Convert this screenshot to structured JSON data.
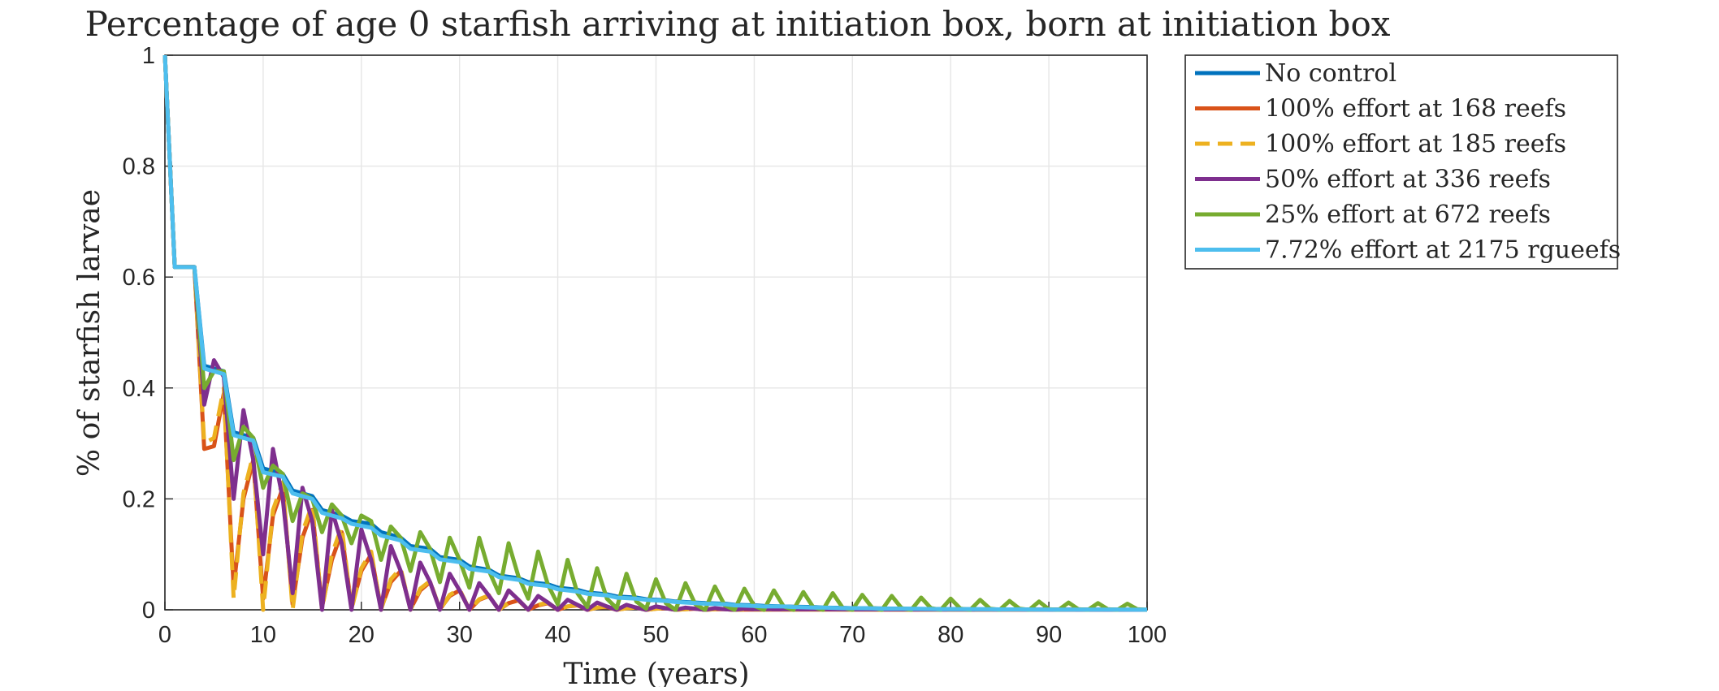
{
  "chart_data": {
    "type": "line",
    "title": "Percentage of age 0 starfish arriving at initiation box, born at initiation box",
    "xlabel": "Time (years)",
    "ylabel": "% of starfish larvae",
    "xlim": [
      0,
      100
    ],
    "ylim": [
      0,
      1
    ],
    "xticks": [
      "0",
      "10",
      "20",
      "30",
      "40",
      "50",
      "60",
      "70",
      "80",
      "90",
      "100"
    ],
    "yticks": [
      "0",
      "0.2",
      "0.4",
      "0.6",
      "0.8",
      "1"
    ],
    "grid": true,
    "legend_position": "outside-right-top",
    "series": [
      {
        "name": "No control",
        "color": "#0072BD",
        "dashed": false,
        "x": [
          0,
          1,
          3,
          4,
          6,
          7,
          9,
          10,
          12,
          13,
          15,
          16,
          18,
          19,
          21,
          22,
          24,
          25,
          27,
          28,
          30,
          31,
          33,
          34,
          36,
          37,
          39,
          40,
          42,
          43,
          45,
          46,
          48,
          49,
          51,
          52,
          54,
          55,
          57,
          58,
          60,
          61,
          63,
          64,
          66,
          67,
          69,
          70,
          72,
          73,
          75,
          76,
          78,
          79,
          81,
          82,
          84,
          85,
          87,
          88,
          90,
          91,
          93,
          94,
          96,
          97,
          100
        ],
        "y": [
          1.0,
          0.618,
          0.618,
          0.44,
          0.43,
          0.32,
          0.31,
          0.255,
          0.245,
          0.215,
          0.205,
          0.18,
          0.17,
          0.16,
          0.155,
          0.14,
          0.13,
          0.115,
          0.11,
          0.095,
          0.09,
          0.078,
          0.072,
          0.062,
          0.057,
          0.05,
          0.046,
          0.04,
          0.036,
          0.031,
          0.028,
          0.024,
          0.022,
          0.019,
          0.017,
          0.015,
          0.013,
          0.012,
          0.011,
          0.009,
          0.008,
          0.007,
          0.006,
          0.0055,
          0.005,
          0.004,
          0.0035,
          0.003,
          0.0028,
          0.0024,
          0.002,
          0.0018,
          0.0015,
          0.0013,
          0.0012,
          0.001,
          0.0009,
          0.0008,
          0.0007,
          0.0006,
          0.0005,
          0.0005,
          0.0004,
          0.0004,
          0.0003,
          0.0003,
          0.0002
        ]
      },
      {
        "name": "100% effort at 168 reefs",
        "color": "#D95319",
        "dashed": false,
        "x": [
          0,
          1,
          3,
          4,
          5,
          6,
          7,
          8,
          9,
          10,
          11,
          12,
          13,
          14,
          15,
          16,
          17,
          18,
          19,
          20,
          21,
          22,
          23,
          24,
          25,
          26,
          27,
          28,
          29,
          30,
          31,
          32,
          33,
          34,
          35,
          36,
          37,
          38,
          39,
          40,
          41,
          42,
          43,
          44,
          45,
          46,
          47,
          48,
          49,
          50,
          51,
          52,
          53,
          54,
          55,
          56,
          57,
          58,
          59,
          60,
          100
        ],
        "y": [
          1.0,
          0.618,
          0.618,
          0.29,
          0.295,
          0.39,
          0.04,
          0.2,
          0.27,
          0.02,
          0.17,
          0.22,
          0.01,
          0.13,
          0.18,
          0.005,
          0.09,
          0.14,
          0.003,
          0.07,
          0.1,
          0.002,
          0.05,
          0.07,
          0.001,
          0.035,
          0.05,
          0.001,
          0.025,
          0.035,
          0.0,
          0.018,
          0.025,
          0.0,
          0.012,
          0.017,
          0.0,
          0.008,
          0.012,
          0.0,
          0.006,
          0.008,
          0.0,
          0.004,
          0.005,
          0.0,
          0.003,
          0.004,
          0.0,
          0.002,
          0.003,
          0.0,
          0.001,
          0.002,
          0.0,
          0.001,
          0.001,
          0.0,
          0.0005,
          0.0005,
          0.0
        ]
      },
      {
        "name": "100% effort at 185 reefs",
        "color": "#EDB120",
        "dashed": true,
        "x": [
          0,
          1,
          3,
          4,
          5,
          6,
          7,
          8,
          9,
          10,
          11,
          12,
          13,
          14,
          15,
          16,
          17,
          18,
          19,
          20,
          21,
          22,
          23,
          24,
          25,
          26,
          27,
          28,
          29,
          30,
          31,
          32,
          33,
          34,
          35,
          36,
          37,
          38,
          39,
          40,
          41,
          42,
          43,
          44,
          45,
          46,
          47,
          48,
          49,
          50,
          51,
          52,
          53,
          54,
          55,
          56,
          57,
          58,
          59,
          60,
          100
        ],
        "y": [
          1.0,
          0.618,
          0.618,
          0.3,
          0.31,
          0.4,
          0.02,
          0.21,
          0.28,
          0.0,
          0.18,
          0.23,
          0.0,
          0.14,
          0.19,
          0.0,
          0.1,
          0.15,
          0.0,
          0.075,
          0.105,
          0.0,
          0.055,
          0.075,
          0.0,
          0.038,
          0.052,
          0.0,
          0.027,
          0.037,
          0.0,
          0.019,
          0.026,
          0.0,
          0.013,
          0.018,
          0.0,
          0.009,
          0.013,
          0.0,
          0.006,
          0.009,
          0.0,
          0.004,
          0.006,
          0.0,
          0.003,
          0.004,
          0.0,
          0.002,
          0.003,
          0.0,
          0.001,
          0.002,
          0.0,
          0.001,
          0.001,
          0.0,
          0.0005,
          0.0005,
          0.0
        ]
      },
      {
        "name": "50% effort at 336 reefs",
        "color": "#7E2F8E",
        "dashed": false,
        "x": [
          0,
          1,
          3,
          4,
          5,
          6,
          7,
          8,
          9,
          10,
          11,
          12,
          13,
          14,
          15,
          16,
          17,
          18,
          19,
          20,
          21,
          22,
          23,
          24,
          25,
          26,
          27,
          28,
          29,
          30,
          31,
          32,
          33,
          34,
          35,
          36,
          37,
          38,
          39,
          40,
          41,
          42,
          43,
          44,
          45,
          46,
          47,
          48,
          49,
          50,
          51,
          52,
          53,
          54,
          55,
          56,
          57,
          58,
          59,
          60,
          100
        ],
        "y": [
          1.0,
          0.618,
          0.618,
          0.37,
          0.45,
          0.42,
          0.2,
          0.36,
          0.27,
          0.1,
          0.29,
          0.2,
          0.03,
          0.22,
          0.16,
          0.0,
          0.18,
          0.12,
          0.0,
          0.145,
          0.09,
          0.0,
          0.115,
          0.07,
          0.0,
          0.085,
          0.05,
          0.0,
          0.065,
          0.035,
          0.0,
          0.048,
          0.025,
          0.0,
          0.035,
          0.018,
          0.0,
          0.025,
          0.013,
          0.0,
          0.018,
          0.009,
          0.0,
          0.013,
          0.006,
          0.0,
          0.009,
          0.004,
          0.0,
          0.006,
          0.003,
          0.0,
          0.004,
          0.002,
          0.0,
          0.003,
          0.001,
          0.0,
          0.002,
          0.001,
          0.0
        ]
      },
      {
        "name": "25% effort at 672 reefs",
        "color": "#77AC30",
        "dashed": false,
        "x": [
          0,
          1,
          3,
          4,
          5,
          6,
          7,
          8,
          9,
          10,
          11,
          12,
          13,
          14,
          15,
          16,
          17,
          18,
          19,
          20,
          21,
          22,
          23,
          24,
          25,
          26,
          27,
          28,
          29,
          30,
          31,
          32,
          33,
          34,
          35,
          36,
          37,
          38,
          39,
          40,
          41,
          42,
          43,
          44,
          45,
          46,
          47,
          48,
          49,
          50,
          51,
          52,
          53,
          54,
          55,
          56,
          57,
          58,
          59,
          60,
          61,
          62,
          63,
          64,
          65,
          66,
          67,
          68,
          69,
          70,
          71,
          72,
          73,
          74,
          75,
          76,
          77,
          78,
          79,
          80,
          81,
          82,
          83,
          84,
          85,
          86,
          87,
          88,
          89,
          90,
          91,
          92,
          93,
          94,
          95,
          96,
          97,
          98,
          99,
          100
        ],
        "y": [
          1.0,
          0.618,
          0.618,
          0.4,
          0.43,
          0.43,
          0.27,
          0.33,
          0.31,
          0.22,
          0.26,
          0.245,
          0.16,
          0.21,
          0.2,
          0.14,
          0.19,
          0.17,
          0.12,
          0.17,
          0.16,
          0.09,
          0.15,
          0.13,
          0.07,
          0.14,
          0.11,
          0.05,
          0.13,
          0.09,
          0.04,
          0.13,
          0.07,
          0.03,
          0.12,
          0.06,
          0.02,
          0.105,
          0.045,
          0.01,
          0.09,
          0.03,
          0.005,
          0.075,
          0.02,
          0.003,
          0.065,
          0.015,
          0.002,
          0.055,
          0.012,
          0.0,
          0.048,
          0.01,
          0.0,
          0.042,
          0.008,
          0.0,
          0.038,
          0.007,
          0.0,
          0.035,
          0.006,
          0.0,
          0.032,
          0.005,
          0.0,
          0.03,
          0.004,
          0.0,
          0.027,
          0.004,
          0.0,
          0.025,
          0.003,
          0.0,
          0.022,
          0.003,
          0.0,
          0.02,
          0.002,
          0.0,
          0.018,
          0.002,
          0.0,
          0.016,
          0.002,
          0.0,
          0.015,
          0.001,
          0.0,
          0.013,
          0.001,
          0.0,
          0.012,
          0.001,
          0.0,
          0.011,
          0.001,
          0.0
        ]
      },
      {
        "name": "7.72% effort at 2175 rgueefs",
        "color": "#4DBEEE",
        "dashed": false,
        "x": [
          0,
          1,
          3,
          4,
          6,
          7,
          9,
          10,
          12,
          13,
          15,
          16,
          18,
          19,
          21,
          22,
          24,
          25,
          27,
          28,
          30,
          31,
          33,
          34,
          36,
          37,
          39,
          40,
          42,
          43,
          45,
          46,
          48,
          49,
          51,
          52,
          54,
          55,
          57,
          58,
          60,
          61,
          63,
          64,
          66,
          67,
          69,
          70,
          72,
          73,
          75,
          76,
          78,
          79,
          81,
          82,
          84,
          85,
          87,
          88,
          90,
          91,
          93,
          94,
          96,
          97,
          100
        ],
        "y": [
          1.0,
          0.618,
          0.618,
          0.435,
          0.425,
          0.315,
          0.305,
          0.248,
          0.24,
          0.21,
          0.2,
          0.175,
          0.165,
          0.155,
          0.148,
          0.134,
          0.125,
          0.11,
          0.105,
          0.091,
          0.086,
          0.074,
          0.069,
          0.059,
          0.054,
          0.047,
          0.043,
          0.037,
          0.033,
          0.029,
          0.026,
          0.022,
          0.02,
          0.018,
          0.016,
          0.014,
          0.012,
          0.011,
          0.01,
          0.008,
          0.007,
          0.006,
          0.006,
          0.005,
          0.004,
          0.004,
          0.003,
          0.003,
          0.0025,
          0.002,
          0.002,
          0.0017,
          0.0014,
          0.0012,
          0.0011,
          0.001,
          0.0009,
          0.0008,
          0.0007,
          0.0006,
          0.0005,
          0.0005,
          0.0004,
          0.0004,
          0.0003,
          0.0003,
          0.0002
        ]
      }
    ]
  }
}
